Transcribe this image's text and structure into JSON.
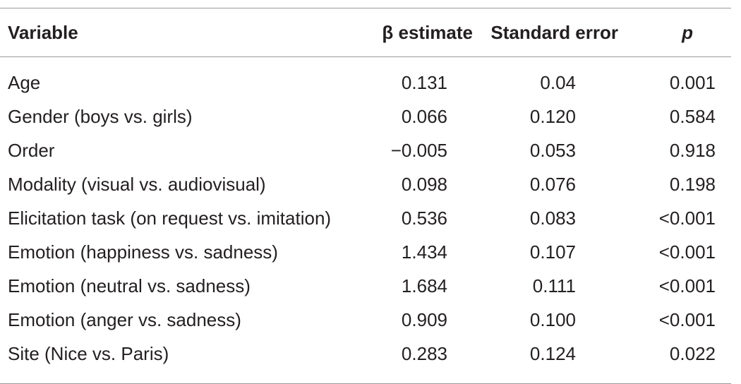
{
  "table": {
    "headers": {
      "variable": "Variable",
      "beta": "β estimate",
      "se": "Standard error",
      "p": "p"
    },
    "rows": [
      {
        "variable": "Age",
        "beta": "0.131",
        "se": "0.04",
        "p": "0.001"
      },
      {
        "variable": "Gender (boys vs. girls)",
        "beta": "0.066",
        "se": "0.120",
        "p": "0.584"
      },
      {
        "variable": "Order",
        "beta": "−0.005",
        "se": "0.053",
        "p": "0.918"
      },
      {
        "variable": "Modality (visual vs. audiovisual)",
        "beta": "0.098",
        "se": "0.076",
        "p": "0.198"
      },
      {
        "variable": "Elicitation task (on request vs. imitation)",
        "beta": "0.536",
        "se": "0.083",
        "p": "<0.001"
      },
      {
        "variable": "Emotion (happiness vs. sadness)",
        "beta": "1.434",
        "se": "0.107",
        "p": "<0.001"
      },
      {
        "variable": "Emotion (neutral vs. sadness)",
        "beta": "1.684",
        "se": "0.111",
        "p": "<0.001"
      },
      {
        "variable": "Emotion (anger vs. sadness)",
        "beta": "0.909",
        "se": "0.100",
        "p": "<0.001"
      },
      {
        "variable": "Site (Nice vs. Paris)",
        "beta": "0.283",
        "se": "0.124",
        "p": "0.022"
      }
    ]
  }
}
